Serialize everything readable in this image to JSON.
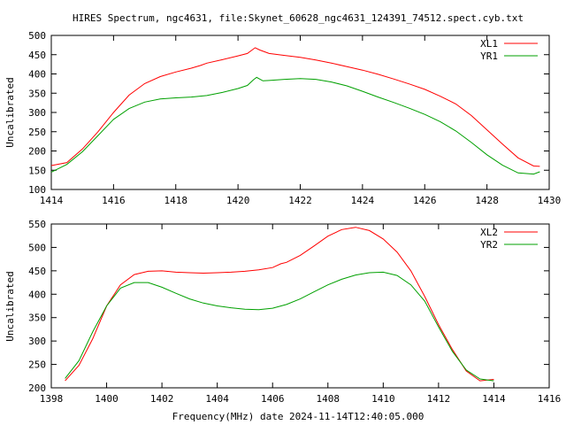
{
  "title": "HIRES Spectrum, ngc4631, file:Skynet_60628_ngc4631_124391_74512.spect.cyb.txt",
  "footer_xlabel": "Frequency(MHz) date 2024-11-14T12:40:05.000",
  "chart_data": [
    {
      "type": "line",
      "ylabel": "Uncalibrated",
      "xlim": [
        1414,
        1430
      ],
      "ylim": [
        100,
        500
      ],
      "x_ticks": [
        "1414",
        "1416",
        "1418",
        "1420",
        "1422",
        "1424",
        "1426",
        "1428",
        "1430"
      ],
      "y_ticks": [
        "100",
        "150",
        "200",
        "250",
        "300",
        "350",
        "400",
        "450",
        "500"
      ],
      "legend_position": "top-right",
      "grid": false,
      "series": [
        {
          "name": "XL1",
          "color": "#ff0000",
          "points": [
            [
              1414.0,
              162
            ],
            [
              1414.5,
              170
            ],
            [
              1415.0,
              205
            ],
            [
              1415.5,
              250
            ],
            [
              1416.0,
              300
            ],
            [
              1416.5,
              345
            ],
            [
              1417.0,
              375
            ],
            [
              1417.5,
              393
            ],
            [
              1418.0,
              405
            ],
            [
              1418.5,
              415
            ],
            [
              1418.8,
              422
            ],
            [
              1419.0,
              428
            ],
            [
              1419.5,
              437
            ],
            [
              1420.0,
              447
            ],
            [
              1420.3,
              453
            ],
            [
              1420.55,
              468
            ],
            [
              1420.7,
              462
            ],
            [
              1421.0,
              453
            ],
            [
              1421.5,
              448
            ],
            [
              1422.0,
              443
            ],
            [
              1422.5,
              436
            ],
            [
              1423.0,
              428
            ],
            [
              1423.5,
              419
            ],
            [
              1424.0,
              410
            ],
            [
              1424.5,
              399
            ],
            [
              1425.0,
              387
            ],
            [
              1425.5,
              374
            ],
            [
              1426.0,
              360
            ],
            [
              1426.5,
              342
            ],
            [
              1427.0,
              322
            ],
            [
              1427.5,
              292
            ],
            [
              1428.0,
              255
            ],
            [
              1428.5,
              218
            ],
            [
              1429.0,
              182
            ],
            [
              1429.5,
              161
            ],
            [
              1429.7,
              160
            ]
          ]
        },
        {
          "name": "YR1",
          "color": "#00a000",
          "points": [
            [
              1414.0,
              145
            ],
            [
              1414.5,
              165
            ],
            [
              1415.0,
              198
            ],
            [
              1415.5,
              240
            ],
            [
              1416.0,
              282
            ],
            [
              1416.5,
              310
            ],
            [
              1417.0,
              327
            ],
            [
              1417.5,
              335
            ],
            [
              1418.0,
              338
            ],
            [
              1418.5,
              340
            ],
            [
              1419.0,
              344
            ],
            [
              1419.5,
              352
            ],
            [
              1420.0,
              362
            ],
            [
              1420.3,
              370
            ],
            [
              1420.5,
              385
            ],
            [
              1420.6,
              391
            ],
            [
              1420.8,
              382
            ],
            [
              1421.0,
              383
            ],
            [
              1421.5,
              386
            ],
            [
              1422.0,
              388
            ],
            [
              1422.5,
              386
            ],
            [
              1423.0,
              379
            ],
            [
              1423.5,
              369
            ],
            [
              1424.0,
              355
            ],
            [
              1424.5,
              340
            ],
            [
              1425.0,
              326
            ],
            [
              1425.5,
              311
            ],
            [
              1426.0,
              295
            ],
            [
              1426.5,
              276
            ],
            [
              1427.0,
              252
            ],
            [
              1427.5,
              222
            ],
            [
              1428.0,
              190
            ],
            [
              1428.5,
              163
            ],
            [
              1429.0,
              143
            ],
            [
              1429.5,
              140
            ],
            [
              1429.7,
              146
            ]
          ]
        }
      ]
    },
    {
      "type": "line",
      "ylabel": "Uncalibrated",
      "xlim": [
        1398,
        1416
      ],
      "ylim": [
        200,
        550
      ],
      "x_ticks": [
        "1398",
        "1400",
        "1402",
        "1404",
        "1406",
        "1408",
        "1410",
        "1412",
        "1414",
        "1416"
      ],
      "y_ticks": [
        "200",
        "250",
        "300",
        "350",
        "400",
        "450",
        "500",
        "550"
      ],
      "legend_position": "top-right",
      "grid": false,
      "series": [
        {
          "name": "XL2",
          "color": "#ff0000",
          "points": [
            [
              1398.5,
              215
            ],
            [
              1399.0,
              248
            ],
            [
              1399.5,
              305
            ],
            [
              1400.0,
              375
            ],
            [
              1400.5,
              420
            ],
            [
              1401.0,
              442
            ],
            [
              1401.5,
              449
            ],
            [
              1402.0,
              450
            ],
            [
              1402.5,
              447
            ],
            [
              1403.0,
              446
            ],
            [
              1403.5,
              445
            ],
            [
              1404.0,
              446
            ],
            [
              1404.5,
              447
            ],
            [
              1405.0,
              449
            ],
            [
              1405.5,
              452
            ],
            [
              1406.0,
              457
            ],
            [
              1406.3,
              465
            ],
            [
              1406.5,
              468
            ],
            [
              1407.0,
              483
            ],
            [
              1407.5,
              503
            ],
            [
              1408.0,
              524
            ],
            [
              1408.5,
              538
            ],
            [
              1409.0,
              543
            ],
            [
              1409.5,
              536
            ],
            [
              1410.0,
              518
            ],
            [
              1410.5,
              490
            ],
            [
              1411.0,
              450
            ],
            [
              1411.5,
              395
            ],
            [
              1412.0,
              335
            ],
            [
              1412.5,
              282
            ],
            [
              1413.0,
              236
            ],
            [
              1413.5,
              215
            ],
            [
              1414.0,
              218
            ]
          ]
        },
        {
          "name": "YR2",
          "color": "#00a000",
          "points": [
            [
              1398.5,
              220
            ],
            [
              1399.0,
              258
            ],
            [
              1399.5,
              320
            ],
            [
              1400.0,
              375
            ],
            [
              1400.5,
              413
            ],
            [
              1401.0,
              425
            ],
            [
              1401.5,
              425
            ],
            [
              1402.0,
              415
            ],
            [
              1402.5,
              402
            ],
            [
              1403.0,
              390
            ],
            [
              1403.5,
              381
            ],
            [
              1404.0,
              375
            ],
            [
              1404.5,
              371
            ],
            [
              1405.0,
              368
            ],
            [
              1405.5,
              367
            ],
            [
              1406.0,
              370
            ],
            [
              1406.5,
              378
            ],
            [
              1407.0,
              390
            ],
            [
              1407.5,
              405
            ],
            [
              1408.0,
              420
            ],
            [
              1408.5,
              432
            ],
            [
              1409.0,
              441
            ],
            [
              1409.5,
              446
            ],
            [
              1410.0,
              447
            ],
            [
              1410.5,
              440
            ],
            [
              1411.0,
              420
            ],
            [
              1411.5,
              385
            ],
            [
              1412.0,
              330
            ],
            [
              1412.5,
              278
            ],
            [
              1413.0,
              238
            ],
            [
              1413.5,
              219
            ],
            [
              1414.0,
              215
            ]
          ]
        }
      ]
    }
  ]
}
